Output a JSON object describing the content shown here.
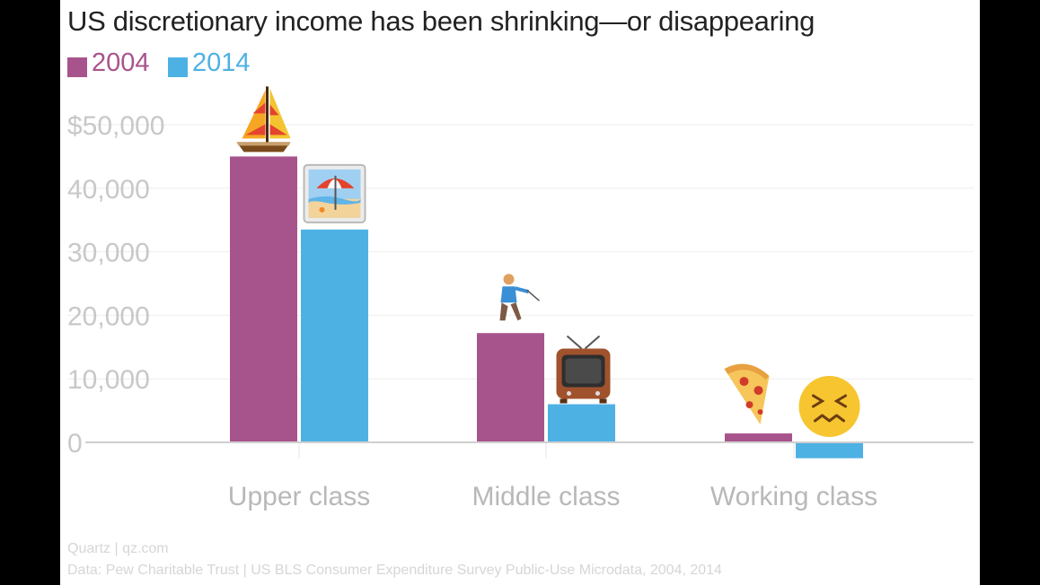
{
  "chart_data": {
    "type": "bar",
    "title": "US discretionary income has been shrinking—or disappearing",
    "categories": [
      "Upper class",
      "Middle class",
      "Working class"
    ],
    "series": [
      {
        "name": "2004",
        "color": "#a8548c",
        "values": [
          45000,
          17200,
          1400
        ]
      },
      {
        "name": "2014",
        "color": "#4eb1e4",
        "values": [
          33500,
          6000,
          -2500
        ]
      }
    ],
    "y_ticks": [
      0,
      10000,
      20000,
      30000,
      40000,
      50000
    ],
    "y_tick_labels": [
      "0",
      "10,000",
      "20,000",
      "30,000",
      "40,000",
      "$50,000"
    ],
    "ylim": [
      -3000,
      53000
    ],
    "grid": true,
    "legend": "top-left",
    "xlabel": "",
    "ylabel": "",
    "annotations": [
      {
        "category": "Upper class",
        "series": "2004",
        "icon": "sailboat-icon"
      },
      {
        "category": "Upper class",
        "series": "2014",
        "icon": "beach-umbrella-icon"
      },
      {
        "category": "Middle class",
        "series": "2004",
        "icon": "golfer-icon"
      },
      {
        "category": "Middle class",
        "series": "2014",
        "icon": "television-icon"
      },
      {
        "category": "Working class",
        "series": "2004",
        "icon": "pizza-icon"
      },
      {
        "category": "Working class",
        "series": "2014",
        "icon": "confounded-face-icon"
      }
    ]
  },
  "footer": {
    "credit": "Quartz | qz.com",
    "source": "Data: Pew Charitable Trust | US BLS Consumer Expenditure Survey Public-Use Microdata, 2004, 2014"
  }
}
